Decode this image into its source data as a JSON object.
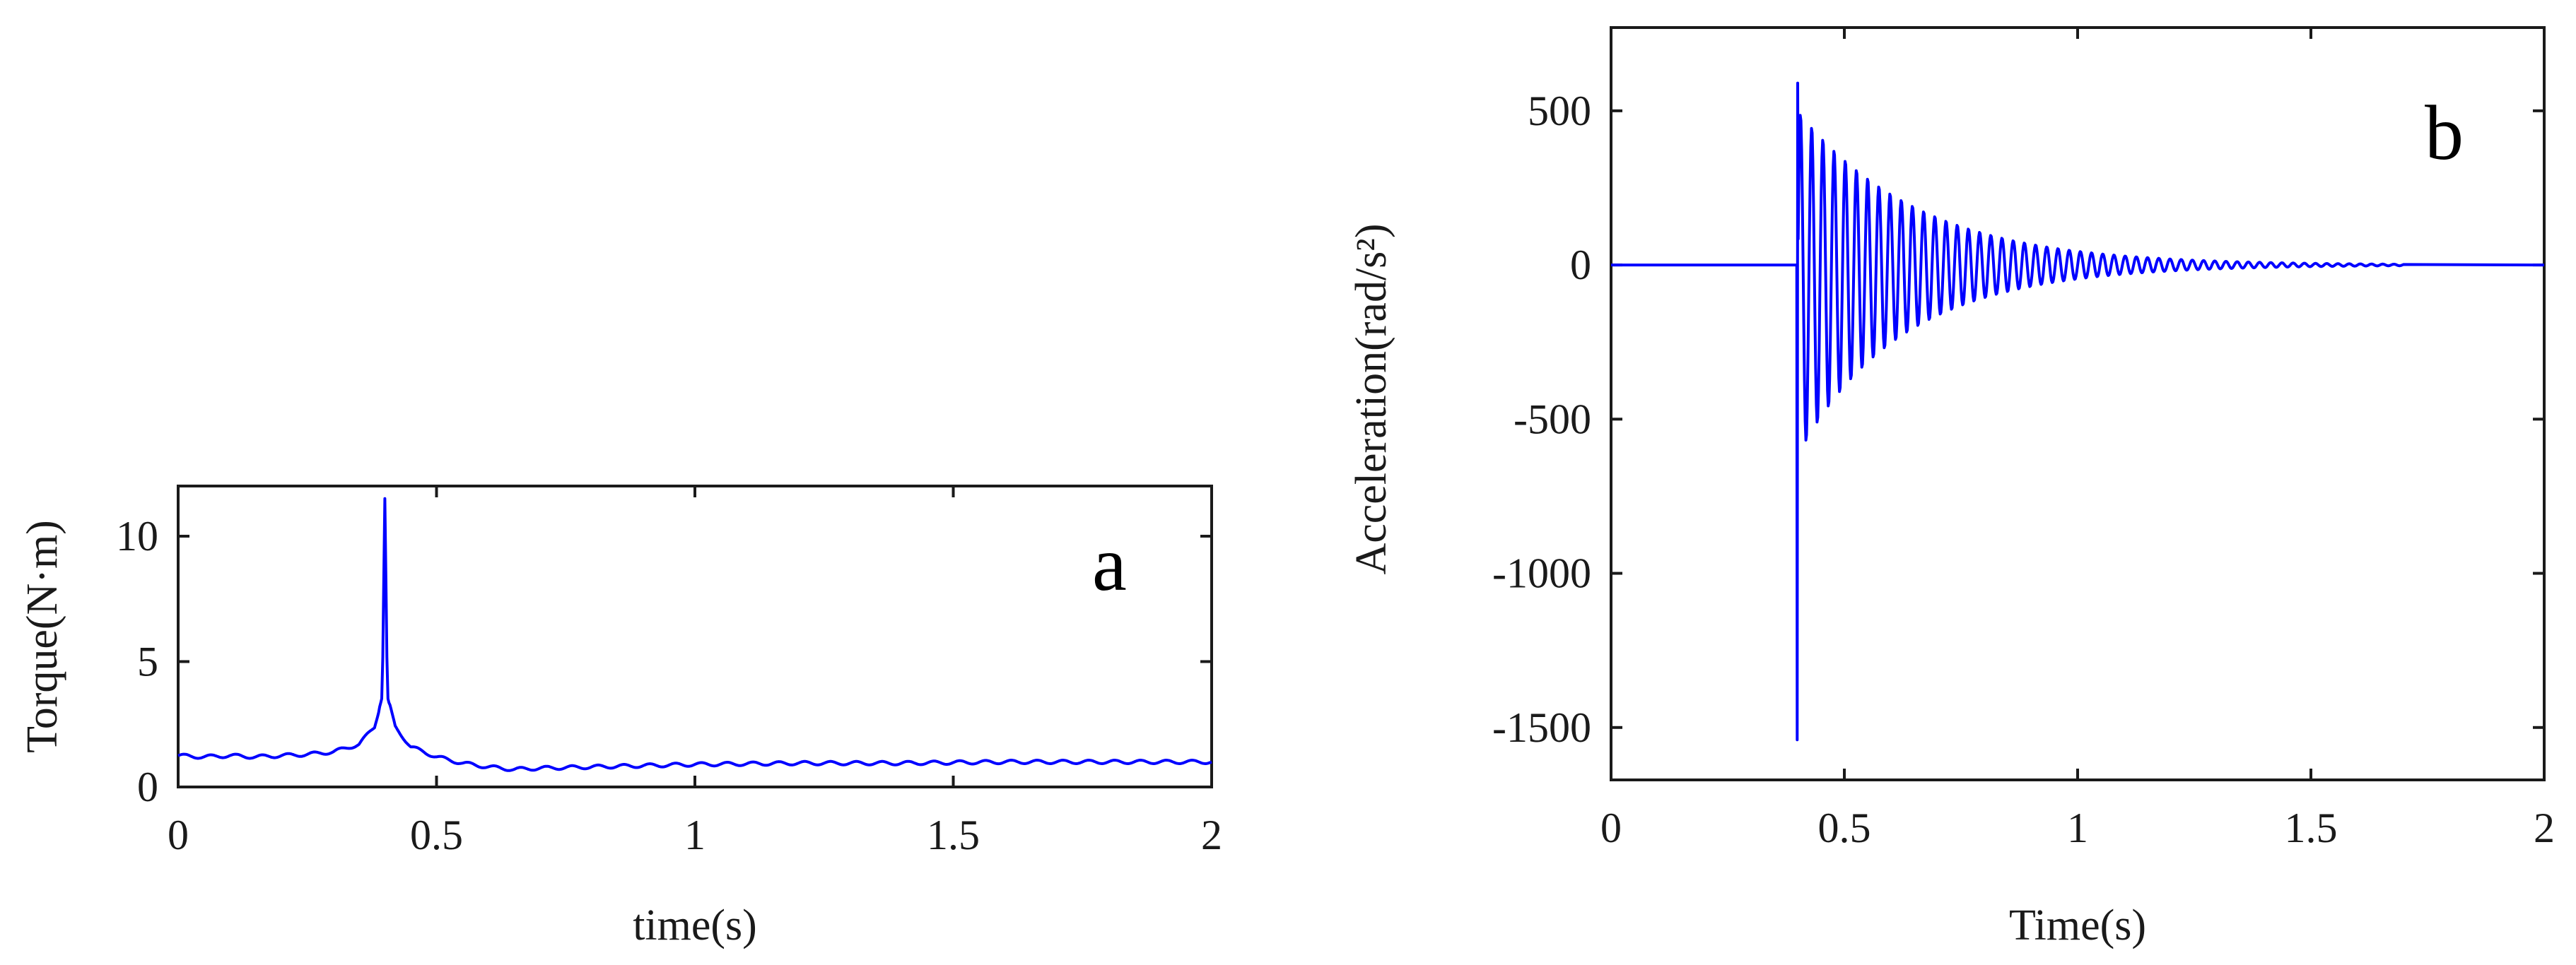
{
  "chart_data": [
    {
      "type": "line",
      "panel_label": "a",
      "xlabel": "time(s)",
      "ylabel": "Torque(N·m)",
      "xlim": [
        0,
        2
      ],
      "ylim": [
        0,
        12
      ],
      "xticks": [
        "0",
        "0.5",
        "1",
        "1.5",
        "2"
      ],
      "yticks": [
        "0",
        "5",
        "10"
      ],
      "color": "#0000ff",
      "series": [
        {
          "x": [
            0,
            0.05,
            0.1,
            0.15,
            0.2,
            0.25,
            0.3,
            0.35,
            0.38,
            0.395,
            0.4,
            0.405,
            0.42,
            0.45,
            0.5,
            0.55,
            0.6,
            0.65,
            0.7,
            0.8,
            0.9,
            1.0,
            1.2,
            1.4,
            1.6,
            1.8,
            2.0
          ],
          "y": [
            1.25,
            1.2,
            1.25,
            1.2,
            1.25,
            1.3,
            1.4,
            1.7,
            2.4,
            3.6,
            11.5,
            3.6,
            2.4,
            1.6,
            1.2,
            0.95,
            0.8,
            0.7,
            0.75,
            0.8,
            0.85,
            0.9,
            0.95,
            0.95,
            1.0,
            1.0,
            1.0
          ]
        }
      ]
    },
    {
      "type": "line",
      "panel_label": "b",
      "xlabel": "Time(s)",
      "ylabel": "Acceleration(rad/s²)",
      "xlim": [
        0,
        2
      ],
      "ylim": [
        -1670,
        770
      ],
      "xticks": [
        "0",
        "0.5",
        "1",
        "1.5",
        "2"
      ],
      "yticks": [
        "500",
        "0",
        "-500",
        "-1000",
        "-1500"
      ],
      "color": "#0000ff",
      "series": [
        {
          "description_free": true,
          "x": [
            0,
            0.398,
            0.4,
            0.401,
            0.402,
            0.41,
            0.42,
            0.44,
            0.46,
            0.5,
            0.55,
            0.6,
            0.7,
            0.8,
            0.9,
            1.0,
            1.2,
            1.4,
            1.6,
            2.0
          ],
          "y": [
            0,
            0,
            -1540,
            590,
            -340,
            520,
            -330,
            180,
            -200,
            120,
            -90,
            80,
            -50,
            30,
            -20,
            15,
            8,
            5,
            3,
            0
          ],
          "decay": {
            "start": 0.4,
            "end": 1.7,
            "period": 0.024,
            "peak": 560
          }
        }
      ]
    }
  ]
}
